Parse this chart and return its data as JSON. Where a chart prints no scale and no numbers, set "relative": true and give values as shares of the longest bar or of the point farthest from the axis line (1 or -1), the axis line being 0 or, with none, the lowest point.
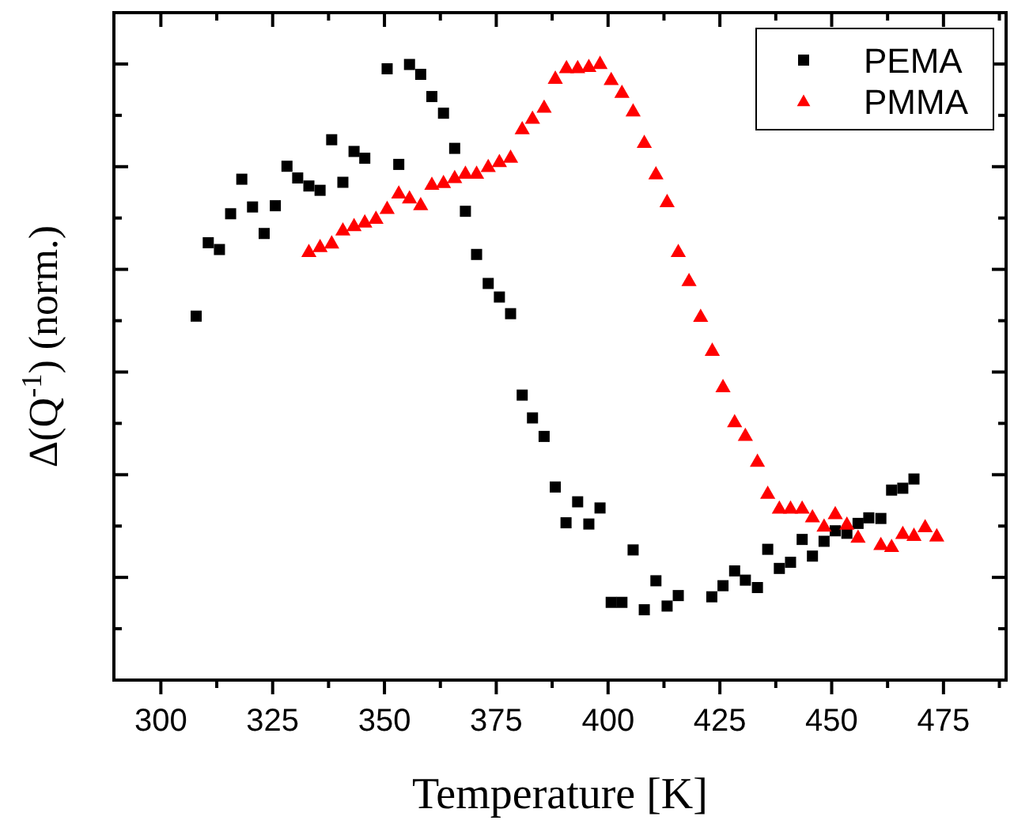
{
  "chart_data": {
    "type": "scatter",
    "xlabel": "Temperature [K]",
    "ylabel": "Δ(Q$^{-1}$) (norm.)",
    "relative": true,
    "xlim": [
      289.5,
      489
    ],
    "xticks": [
      300,
      {
        "value": 312.5,
        "label": null
      },
      325,
      {
        "value": 337.5,
        "label": null
      },
      350,
      {
        "value": 362.5,
        "label": null
      },
      375,
      {
        "value": 387.5,
        "label": null
      },
      400,
      {
        "value": 412.5,
        "label": null
      },
      425,
      {
        "value": 437.5,
        "label": null
      },
      450,
      {
        "value": 462.5,
        "label": null
      },
      475,
      {
        "value": 487.5,
        "label": null
      }
    ],
    "legend": "top right",
    "grid": false,
    "series": [
      {
        "name": "PEMA",
        "color": "#000000",
        "marker": "square",
        "x": [
          307.9,
          310.6,
          313.1,
          315.6,
          318.1,
          320.5,
          323.1,
          325.6,
          328.2,
          330.6,
          333.1,
          335.6,
          338.2,
          340.7,
          343.2,
          345.6,
          350.6,
          353.2,
          355.6,
          358.1,
          360.6,
          363.2,
          365.7,
          368.1,
          370.6,
          373.2,
          375.7,
          378.2,
          380.8,
          383.1,
          385.7,
          388.2,
          390.6,
          393.2,
          395.7,
          398.2,
          400.7,
          403.1,
          405.6,
          408.1,
          410.7,
          413.2,
          415.7,
          423.2,
          425.7,
          428.3,
          430.7,
          433.4,
          435.7,
          438.3,
          440.8,
          443.4,
          445.7,
          448.3,
          450.8,
          453.4,
          455.9,
          458.3,
          461.0,
          463.4,
          465.9,
          468.4
        ],
        "values": [
          0.59,
          0.709,
          0.698,
          0.756,
          0.812,
          0.767,
          0.724,
          0.769,
          0.833,
          0.814,
          0.801,
          0.794,
          0.876,
          0.807,
          0.857,
          0.846,
          0.991,
          0.836,
          0.998,
          0.982,
          0.946,
          0.919,
          0.862,
          0.76,
          0.69,
          0.643,
          0.621,
          0.594,
          0.462,
          0.425,
          0.395,
          0.313,
          0.255,
          0.289,
          0.253,
          0.279,
          0.126,
          0.126,
          0.211,
          0.114,
          0.161,
          0.12,
          0.137,
          0.135,
          0.153,
          0.177,
          0.162,
          0.15,
          0.212,
          0.181,
          0.191,
          0.228,
          0.201,
          0.225,
          0.242,
          0.238,
          0.254,
          0.263,
          0.262,
          0.308,
          0.311,
          0.326
        ]
      },
      {
        "name": "PMMA",
        "color": "#ff0000",
        "marker": "triangle",
        "x": [
          333.1,
          335.6,
          338.2,
          340.7,
          343.2,
          345.6,
          348.1,
          350.6,
          353.2,
          355.6,
          358.1,
          360.6,
          363.2,
          365.7,
          368.1,
          370.6,
          373.2,
          375.7,
          378.2,
          380.8,
          383.1,
          385.7,
          388.2,
          390.7,
          393.2,
          395.7,
          398.2,
          400.7,
          403.1,
          405.6,
          408.1,
          410.7,
          413.2,
          415.7,
          418.1,
          420.7,
          423.3,
          425.7,
          428.3,
          430.7,
          433.4,
          435.7,
          438.3,
          440.8,
          443.4,
          445.7,
          448.3,
          450.8,
          453.4,
          455.9,
          461.0,
          463.4,
          465.9,
          468.4,
          470.9,
          473.5
        ],
        "values": [
          0.695,
          0.703,
          0.709,
          0.73,
          0.737,
          0.743,
          0.749,
          0.765,
          0.79,
          0.782,
          0.771,
          0.804,
          0.807,
          0.815,
          0.822,
          0.822,
          0.833,
          0.841,
          0.848,
          0.894,
          0.911,
          0.929,
          0.976,
          0.993,
          0.993,
          0.995,
          1.0,
          0.974,
          0.953,
          0.923,
          0.872,
          0.821,
          0.776,
          0.695,
          0.648,
          0.59,
          0.535,
          0.476,
          0.419,
          0.397,
          0.355,
          0.303,
          0.279,
          0.279,
          0.279,
          0.265,
          0.25,
          0.27,
          0.253,
          0.232,
          0.22,
          0.217,
          0.238,
          0.235,
          0.249,
          0.234
        ]
      }
    ]
  }
}
